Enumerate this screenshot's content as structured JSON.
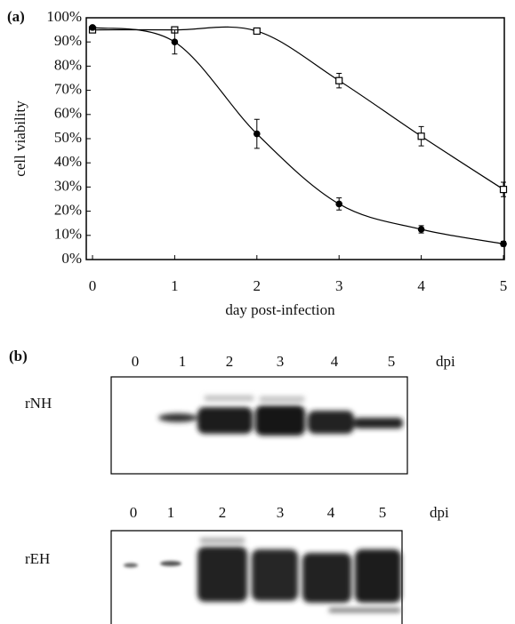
{
  "chart_data": {
    "type": "line",
    "panel_label": "(a)",
    "xlabel": "day post-infection",
    "ylabel": "cell viability",
    "x": [
      0,
      1,
      2,
      3,
      4,
      5
    ],
    "xlim": [
      0,
      5
    ],
    "xticks": [
      0,
      1,
      2,
      3,
      4,
      5
    ],
    "ylim": [
      0,
      100
    ],
    "yticks": [
      {
        "value": 0,
        "label": "0%"
      },
      {
        "value": 10,
        "label": "10%"
      },
      {
        "value": 20,
        "label": "20%"
      },
      {
        "value": 30,
        "label": "30%"
      },
      {
        "value": 40,
        "label": "40%"
      },
      {
        "value": 50,
        "label": "50%"
      },
      {
        "value": 60,
        "label": "60%"
      },
      {
        "value": 70,
        "label": "70%"
      },
      {
        "value": 80,
        "label": "80%"
      },
      {
        "value": 90,
        "label": "90%"
      },
      {
        "value": 100,
        "label": "100%"
      }
    ],
    "series": [
      {
        "marker": "square",
        "color": "#000000",
        "values": [
          95,
          95,
          94.5,
          74,
          51,
          29
        ],
        "errors": [
          0,
          0,
          0,
          3,
          4,
          3
        ]
      },
      {
        "marker": "circle",
        "color": "#000000",
        "values": [
          96,
          90,
          52,
          23,
          12.5,
          6.5
        ],
        "errors": [
          0,
          5,
          6,
          2.5,
          1.5,
          1
        ]
      }
    ]
  },
  "blots": {
    "panel_label": "(b)",
    "items": [
      {
        "label": "rNH",
        "lanes": [
          "0",
          "1",
          "2",
          "3",
          "4",
          "5"
        ],
        "unit": "dpi"
      },
      {
        "label": "rEH",
        "lanes": [
          "0",
          "1",
          "2",
          "3",
          "4",
          "5"
        ],
        "unit": "dpi"
      }
    ]
  }
}
